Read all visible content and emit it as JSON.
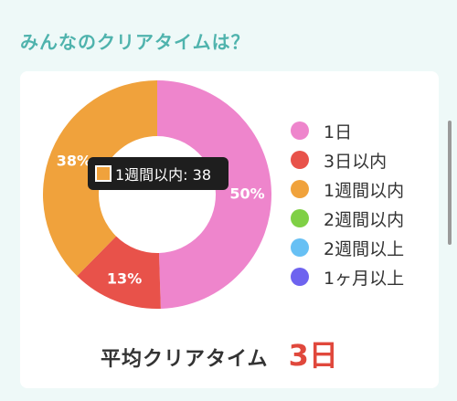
{
  "section": {
    "title": "みんなのクリアタイムは？"
  },
  "chart_data": {
    "type": "pie",
    "categories": [
      "1日",
      "3日以内",
      "1週間以内",
      "2週間以内",
      "2週間以上",
      "1ヶ月以上"
    ],
    "values": [
      50,
      13,
      38,
      0,
      0,
      0
    ],
    "colors": [
      "#ee85cc",
      "#e8524a",
      "#f0a23c",
      "#7fd045",
      "#67c0f4",
      "#6e63ef"
    ],
    "data_labels": [
      "50%",
      "13%",
      "38%",
      "",
      "",
      ""
    ],
    "legend": "right",
    "tooltip": {
      "text": "1週間以内: 38"
    }
  },
  "average": {
    "label": "平均クリアタイム",
    "value": "3日"
  }
}
